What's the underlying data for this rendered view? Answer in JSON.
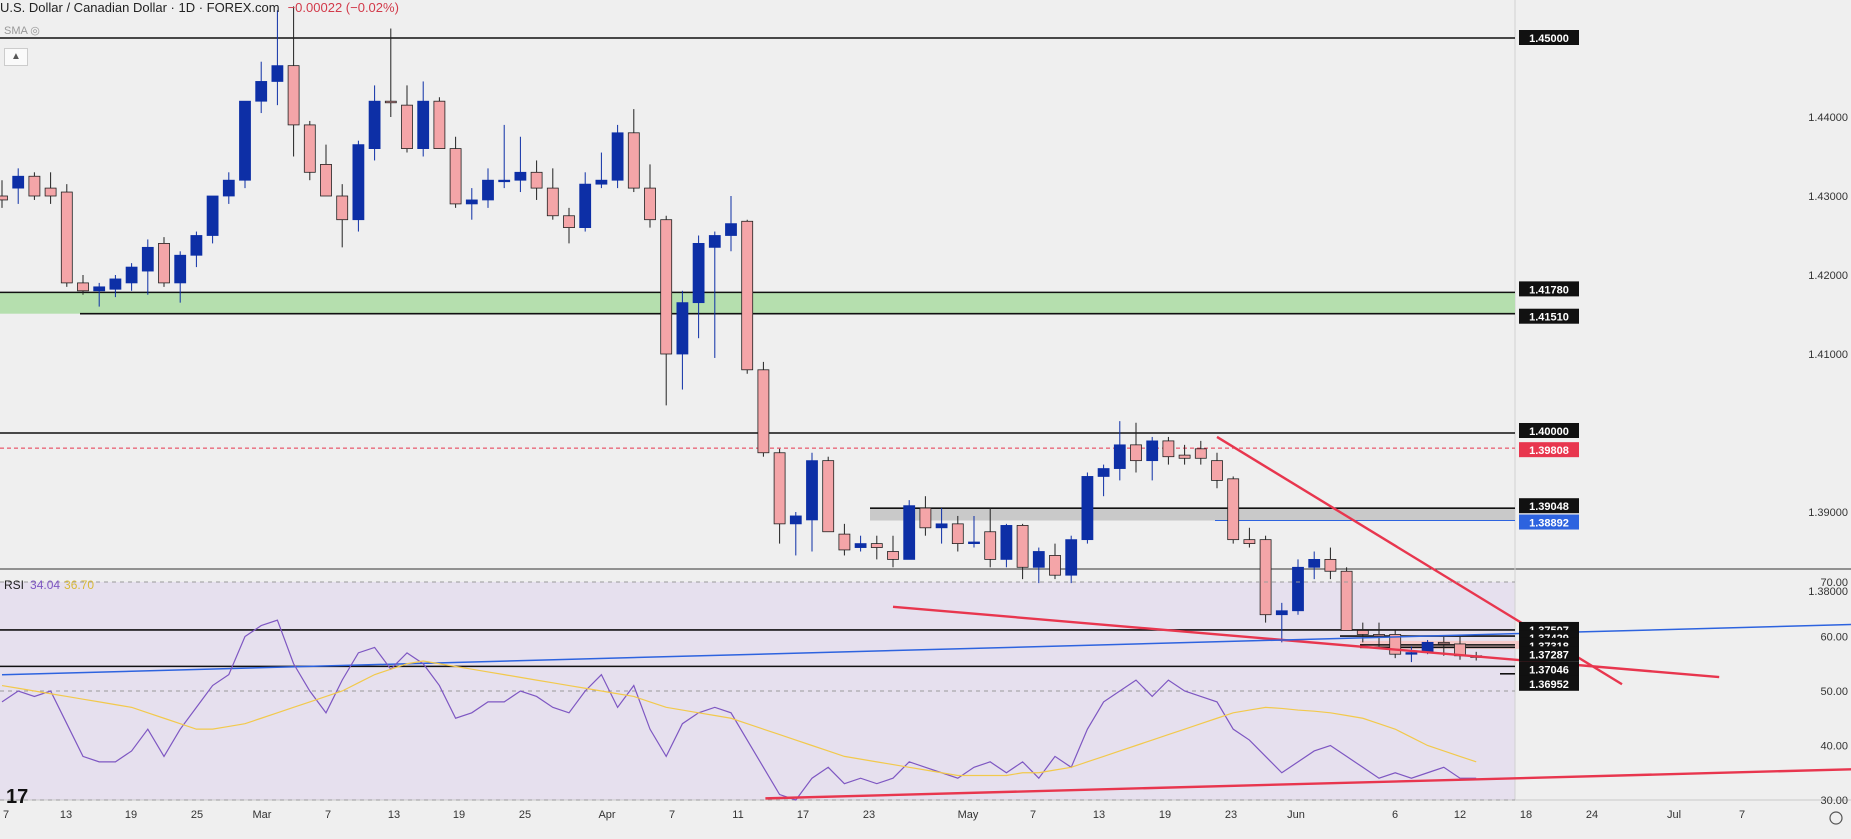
{
  "header": {
    "title": "U.S. Dollar / Canadian Dollar · 1D · FOREX.com",
    "change": "−0.00022 (−0.02%)",
    "indicator": "SMA"
  },
  "rsi_header": {
    "label": "RSI",
    "value1": "34.04",
    "value2": "36.70"
  },
  "colors": {
    "bull": "#0d2fa6",
    "bear": "#f4a5a8",
    "wick": "#222222",
    "trend_red": "#e8364e",
    "trend_blue": "#2d63df",
    "rsi_line": "#7e57c2",
    "rsi_ma": "#f2c94c",
    "rsi_bg": "#e6e0ee",
    "green_zone": "#b5dfae",
    "gray_zone": "#c9c9c9"
  },
  "chart_data": [
    {
      "type": "candlestick",
      "title": "U.S. Dollar / Canadian Dollar · 1D · FOREX.com",
      "price_axis_labels": [
        "1.38000",
        "1.39000",
        "1.41000",
        "1.42000",
        "1.43000",
        "1.44000"
      ],
      "price_axis_ticks": [
        1.38,
        1.39,
        1.41,
        1.42,
        1.43,
        1.44
      ],
      "x_tick_labels": [
        "7",
        "13",
        "19",
        "25",
        "Mar",
        "7",
        "13",
        "19",
        "25",
        "Apr",
        "7",
        "11",
        "17",
        "23",
        "May",
        "7",
        "13",
        "19",
        "23",
        "Jun",
        "6",
        "12",
        "18",
        "24",
        "Jul",
        "7"
      ],
      "ylim": [
        1.3682,
        1.4532
      ],
      "levels": [
        {
          "price": 1.45,
          "label": "1.45000",
          "style": "black-box"
        },
        {
          "price": 1.4178,
          "label": "1.41780",
          "style": "black-box"
        },
        {
          "price": 1.4151,
          "label": "1.41510",
          "style": "black-box"
        },
        {
          "price": 1.4,
          "label": "1.40000",
          "style": "black-box"
        },
        {
          "price": 1.39808,
          "label": "1.39808",
          "style": "red-box"
        },
        {
          "price": 1.39048,
          "label": "1.39048",
          "style": "black-box"
        },
        {
          "price": 1.38892,
          "label": "1.38892",
          "style": "blue-box"
        },
        {
          "price": 1.37507,
          "label": "1.37507",
          "style": "black-box"
        },
        {
          "price": 1.37429,
          "label": "1.37429",
          "style": "black-box"
        },
        {
          "price": 1.37318,
          "label": "1.37318",
          "style": "black-box"
        },
        {
          "price": 1.37287,
          "label": "1.37287",
          "style": "black-box"
        },
        {
          "price": 1.37046,
          "label": "1.37046",
          "style": "black-box"
        },
        {
          "price": 1.36952,
          "label": "1.36952",
          "style": "black-box"
        }
      ],
      "candles": [
        [
          1.43,
          1.432,
          1.4285,
          1.4295
        ],
        [
          1.431,
          1.4335,
          1.429,
          1.4325
        ],
        [
          1.4325,
          1.433,
          1.4295,
          1.43
        ],
        [
          1.431,
          1.433,
          1.429,
          1.43
        ],
        [
          1.4305,
          1.4315,
          1.4185,
          1.419
        ],
        [
          1.419,
          1.42,
          1.4175,
          1.418
        ],
        [
          1.418,
          1.419,
          1.416,
          1.4185
        ],
        [
          1.4182,
          1.42,
          1.4172,
          1.4195
        ],
        [
          1.419,
          1.4215,
          1.418,
          1.421
        ],
        [
          1.4205,
          1.4245,
          1.4175,
          1.4235
        ],
        [
          1.424,
          1.4248,
          1.4185,
          1.419
        ],
        [
          1.419,
          1.423,
          1.4165,
          1.4225
        ],
        [
          1.4225,
          1.4255,
          1.421,
          1.425
        ],
        [
          1.425,
          1.43,
          1.424,
          1.43
        ],
        [
          1.43,
          1.433,
          1.429,
          1.432
        ],
        [
          1.432,
          1.442,
          1.431,
          1.442
        ],
        [
          1.442,
          1.447,
          1.4405,
          1.4445
        ],
        [
          1.4445,
          1.4535,
          1.4415,
          1.4465
        ],
        [
          1.4465,
          1.454,
          1.435,
          1.439
        ],
        [
          1.439,
          1.4395,
          1.432,
          1.433
        ],
        [
          1.434,
          1.4365,
          1.43,
          1.43
        ],
        [
          1.43,
          1.4315,
          1.4235,
          1.427
        ],
        [
          1.427,
          1.437,
          1.4255,
          1.4365
        ],
        [
          1.436,
          1.444,
          1.4345,
          1.442
        ],
        [
          1.442,
          1.4512,
          1.44,
          1.4418
        ],
        [
          1.4415,
          1.444,
          1.4355,
          1.436
        ],
        [
          1.436,
          1.4445,
          1.435,
          1.442
        ],
        [
          1.442,
          1.4425,
          1.436,
          1.436
        ],
        [
          1.436,
          1.4375,
          1.4285,
          1.429
        ],
        [
          1.429,
          1.431,
          1.427,
          1.4295
        ],
        [
          1.4295,
          1.4335,
          1.4285,
          1.432
        ],
        [
          1.432,
          1.439,
          1.431,
          1.432
        ],
        [
          1.432,
          1.4375,
          1.4305,
          1.433
        ],
        [
          1.433,
          1.4345,
          1.4295,
          1.431
        ],
        [
          1.431,
          1.4335,
          1.427,
          1.4275
        ],
        [
          1.4275,
          1.4285,
          1.424,
          1.426
        ],
        [
          1.426,
          1.433,
          1.4255,
          1.4315
        ],
        [
          1.4315,
          1.4355,
          1.431,
          1.432
        ],
        [
          1.432,
          1.439,
          1.431,
          1.438
        ],
        [
          1.438,
          1.441,
          1.4305,
          1.431
        ],
        [
          1.431,
          1.434,
          1.426,
          1.427
        ],
        [
          1.427,
          1.4275,
          1.4035,
          1.41
        ],
        [
          1.41,
          1.418,
          1.4055,
          1.4165
        ],
        [
          1.4165,
          1.425,
          1.412,
          1.424
        ],
        [
          1.4235,
          1.4255,
          1.4095,
          1.425
        ],
        [
          1.425,
          1.43,
          1.423,
          1.4265
        ],
        [
          1.4268,
          1.427,
          1.4075,
          1.408
        ],
        [
          1.408,
          1.409,
          1.397,
          1.3975
        ],
        [
          1.3975,
          1.398,
          1.386,
          1.3885
        ],
        [
          1.3885,
          1.39,
          1.3845,
          1.3895
        ],
        [
          1.389,
          1.3975,
          1.385,
          1.3965
        ],
        [
          1.3965,
          1.397,
          1.3875,
          1.3875
        ],
        [
          1.3872,
          1.3885,
          1.3845,
          1.3852
        ],
        [
          1.3855,
          1.387,
          1.385,
          1.386
        ],
        [
          1.386,
          1.387,
          1.384,
          1.3855
        ],
        [
          1.385,
          1.387,
          1.383,
          1.384
        ],
        [
          1.384,
          1.3915,
          1.384,
          1.3908
        ],
        [
          1.3905,
          1.392,
          1.387,
          1.388
        ],
        [
          1.388,
          1.3905,
          1.386,
          1.3885
        ],
        [
          1.3885,
          1.3895,
          1.385,
          1.386
        ],
        [
          1.386,
          1.3895,
          1.3855,
          1.3862
        ],
        [
          1.3875,
          1.3905,
          1.383,
          1.384
        ],
        [
          1.384,
          1.3885,
          1.383,
          1.3883
        ],
        [
          1.3883,
          1.3885,
          1.3815,
          1.383
        ],
        [
          1.383,
          1.3855,
          1.381,
          1.385
        ],
        [
          1.3845,
          1.386,
          1.3815,
          1.382
        ],
        [
          1.382,
          1.387,
          1.381,
          1.3865
        ],
        [
          1.3865,
          1.395,
          1.386,
          1.3945
        ],
        [
          1.3945,
          1.396,
          1.392,
          1.3955
        ],
        [
          1.3955,
          1.4015,
          1.394,
          1.3985
        ],
        [
          1.3985,
          1.4013,
          1.395,
          1.3965
        ],
        [
          1.3965,
          1.3995,
          1.394,
          1.399
        ],
        [
          1.399,
          1.3995,
          1.396,
          1.397
        ],
        [
          1.3972,
          1.3985,
          1.396,
          1.3968
        ],
        [
          1.398,
          1.399,
          1.396,
          1.3968
        ],
        [
          1.3965,
          1.3975,
          1.393,
          1.394
        ],
        [
          1.3942,
          1.3945,
          1.386,
          1.3865
        ],
        [
          1.3865,
          1.388,
          1.3855,
          1.386
        ],
        [
          1.3865,
          1.387,
          1.376,
          1.377
        ],
        [
          1.377,
          1.3785,
          1.3735,
          1.3775
        ],
        [
          1.3775,
          1.384,
          1.377,
          1.383
        ],
        [
          1.383,
          1.385,
          1.3815,
          1.384
        ],
        [
          1.384,
          1.3855,
          1.3815,
          1.3825
        ],
        [
          1.3825,
          1.383,
          1.375,
          1.375
        ],
        [
          1.375,
          1.376,
          1.3735,
          1.3745
        ],
        [
          1.3745,
          1.376,
          1.373,
          1.3743
        ],
        [
          1.3745,
          1.375,
          1.3715,
          1.372
        ],
        [
          1.372,
          1.373,
          1.371,
          1.3722
        ],
        [
          1.3722,
          1.3738,
          1.372,
          1.3735
        ],
        [
          1.3735,
          1.3742,
          1.3718,
          1.3733
        ],
        [
          1.3733,
          1.3742,
          1.3713,
          1.3718
        ],
        [
          1.3718,
          1.3723,
          1.3712,
          1.3716
        ]
      ],
      "trendlines": [
        {
          "name": "lower red support",
          "color": "red",
          "points": [
            [
              55,
              1.378
            ],
            [
              106,
              1.3691
            ]
          ]
        },
        {
          "name": "upper red resistance",
          "color": "red",
          "points": [
            [
              75,
              1.3995
            ],
            [
              100,
              1.3682
            ]
          ]
        },
        {
          "name": "blue rising line",
          "color": "blue",
          "points": [
            [
              0,
              1.3694
            ],
            [
              115,
              1.3758
            ]
          ]
        }
      ]
    },
    {
      "type": "line",
      "title": "RSI",
      "y_tick_labels": [
        "30.00",
        "40.00",
        "50.00",
        "60.00",
        "70.00"
      ],
      "ylim": [
        30,
        70
      ],
      "guide_levels": [
        70,
        50,
        30
      ],
      "series": [
        {
          "name": "RSI",
          "values": [
            48,
            50,
            49,
            50,
            44,
            38,
            37,
            37,
            39,
            43,
            38,
            43,
            47,
            51,
            53,
            60,
            62,
            63,
            55,
            50,
            46,
            52,
            57,
            58,
            54,
            57,
            55,
            51,
            45,
            46,
            48,
            48,
            50,
            49,
            47,
            46,
            50,
            53,
            47,
            51,
            43,
            38,
            44,
            46,
            47,
            46,
            41,
            36,
            31,
            30,
            34,
            36,
            33,
            34,
            33,
            34,
            37,
            36,
            35,
            34,
            36,
            37,
            35,
            37,
            34,
            38,
            36,
            43,
            48,
            50,
            52,
            49,
            52,
            50,
            49,
            48,
            43,
            41,
            38,
            35,
            37,
            39,
            40,
            38,
            36,
            34,
            35,
            34,
            35,
            36,
            34,
            34
          ]
        },
        {
          "name": "RSI-based MA",
          "values": [
            51,
            50.5,
            50,
            49.5,
            49,
            48.5,
            48,
            47.5,
            47,
            46,
            45,
            44,
            43,
            43,
            43.5,
            44,
            45,
            46,
            47,
            48,
            49,
            50,
            51.5,
            53,
            54,
            55,
            55.5,
            55,
            54.5,
            54,
            53.5,
            53,
            52.5,
            52,
            51.5,
            51,
            50.5,
            50,
            49.5,
            49,
            48,
            47,
            46.5,
            46,
            45.5,
            45,
            44,
            43,
            42,
            41,
            40,
            39,
            38,
            37.5,
            37,
            36.5,
            36,
            35.5,
            35,
            34.5,
            34.5,
            34.5,
            34.5,
            35,
            35,
            35.5,
            36,
            37,
            38,
            39,
            40,
            41,
            42,
            43,
            44,
            45,
            46,
            46.5,
            47,
            46.8,
            46.5,
            46.3,
            46,
            45.5,
            45,
            44,
            43,
            41.5,
            40,
            39,
            38,
            37
          ]
        }
      ],
      "trendlines": [
        {
          "name": "RSI rising support",
          "color": "red",
          "points": [
            [
              47,
              30.3
            ],
            [
              120,
              36.1
            ]
          ]
        }
      ]
    }
  ]
}
